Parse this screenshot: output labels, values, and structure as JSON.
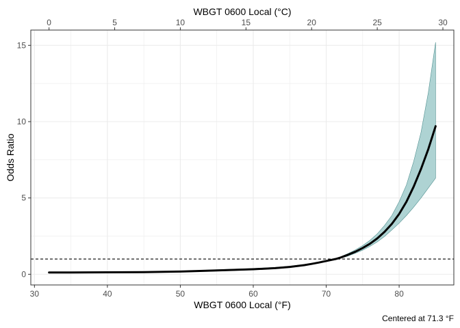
{
  "chart_data": {
    "type": "line",
    "title": "",
    "xlabel": "WBGT 0600 Local (°F)",
    "x2label": "WBGT 0600 Local (°C)",
    "ylabel": "Odds Ratio",
    "caption": "Centered at 71.3 °F",
    "xlim": [
      29.5,
      87.5
    ],
    "ylim": [
      -0.7,
      16.0
    ],
    "x_ticks": [
      30,
      40,
      50,
      60,
      70,
      80
    ],
    "x2_ticks": [
      0,
      5,
      10,
      15,
      20,
      25,
      30
    ],
    "y_ticks": [
      0,
      5,
      10,
      15
    ],
    "reference_line": 1,
    "grid": true,
    "colors": {
      "line": "#000000",
      "ribbon_fill": "#aed3d3",
      "ribbon_edge": "#4f8f8f",
      "grid": "#ebebeb",
      "border": "#333333"
    },
    "series": [
      {
        "x": [
          32,
          35,
          40,
          45,
          50,
          55,
          60,
          63,
          65,
          67,
          68,
          69,
          70,
          71.3,
          72,
          73,
          74,
          75,
          76,
          77,
          78,
          79,
          80,
          81,
          82,
          83,
          84,
          85
        ],
        "y": [
          0.12,
          0.12,
          0.13,
          0.14,
          0.18,
          0.25,
          0.33,
          0.4,
          0.48,
          0.6,
          0.68,
          0.77,
          0.87,
          1.0,
          1.1,
          1.28,
          1.48,
          1.72,
          2.0,
          2.35,
          2.78,
          3.3,
          3.95,
          4.75,
          5.75,
          6.9,
          8.2,
          9.7
        ],
        "lower": [
          0.1,
          0.1,
          0.11,
          0.12,
          0.15,
          0.21,
          0.29,
          0.36,
          0.44,
          0.56,
          0.64,
          0.74,
          0.84,
          1.0,
          1.05,
          1.2,
          1.38,
          1.58,
          1.83,
          2.12,
          2.48,
          2.9,
          3.35,
          3.85,
          4.4,
          5.0,
          5.65,
          6.3
        ],
        "upper": [
          0.14,
          0.14,
          0.15,
          0.16,
          0.21,
          0.3,
          0.38,
          0.45,
          0.53,
          0.64,
          0.72,
          0.8,
          0.9,
          1.0,
          1.15,
          1.36,
          1.6,
          1.88,
          2.22,
          2.65,
          3.2,
          3.85,
          4.75,
          5.85,
          7.4,
          9.3,
          11.9,
          15.2
        ]
      }
    ]
  }
}
